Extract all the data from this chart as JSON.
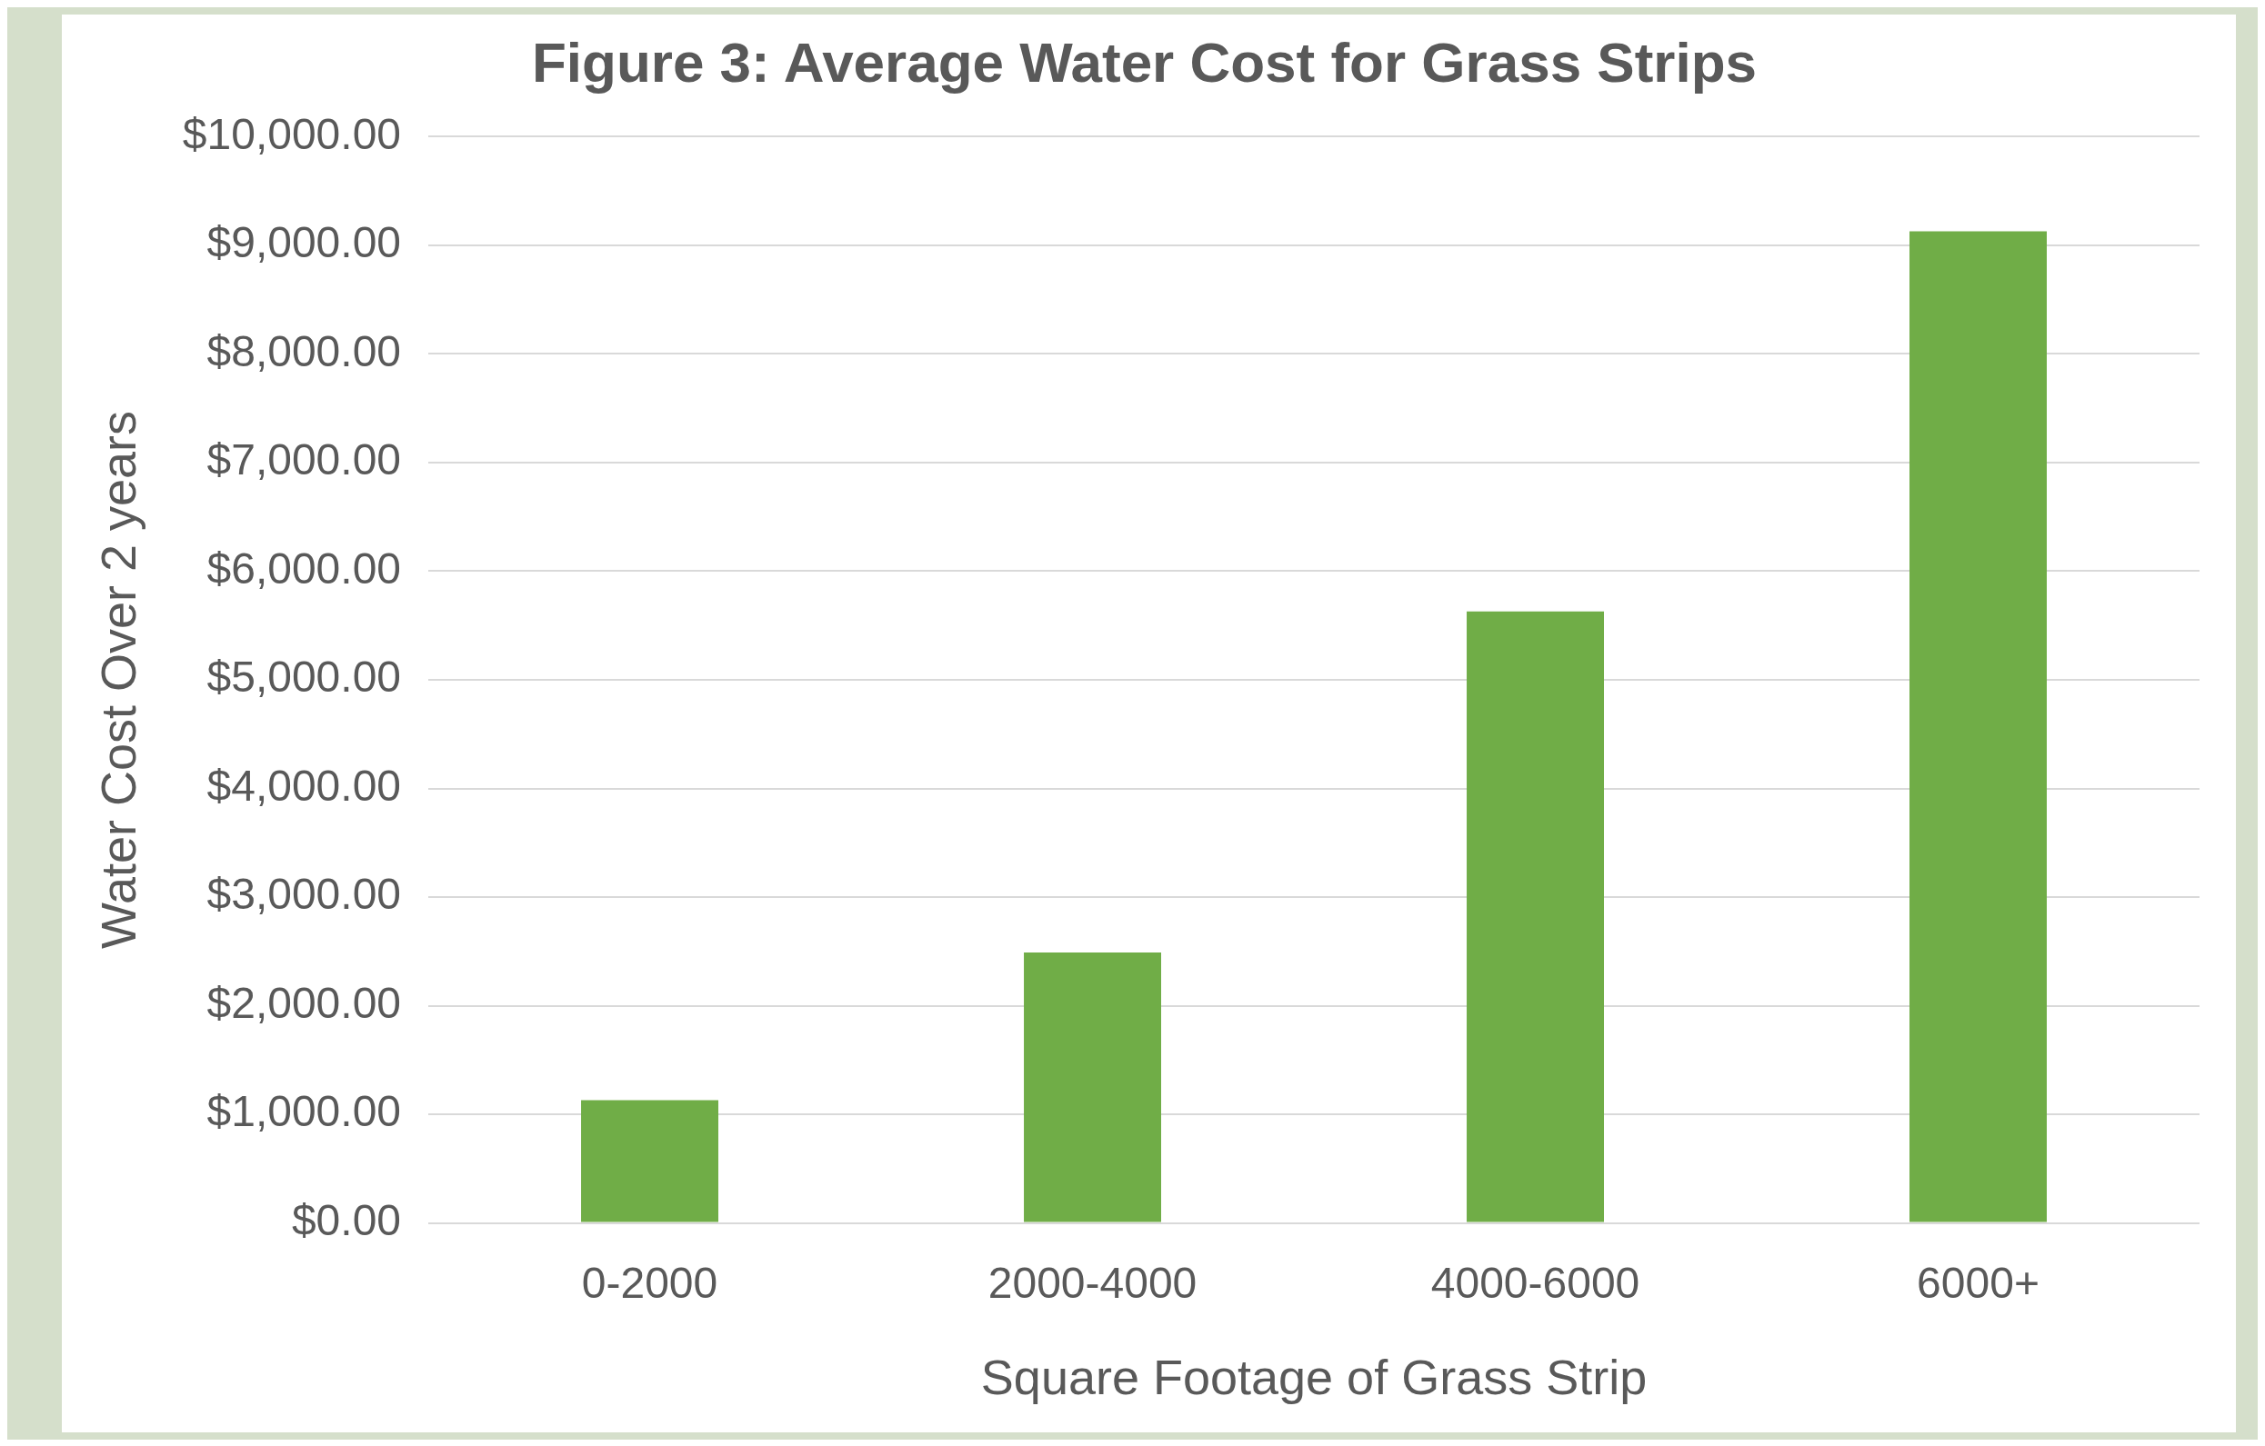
{
  "chart_data": {
    "type": "bar",
    "title": "Figure 3: Average Water Cost for Grass Strips",
    "xlabel": "Square Footage of Grass Strip",
    "ylabel": "Water Cost Over 2 years",
    "categories": [
      "0-2000",
      "2000-4000",
      "4000-6000",
      "6000+"
    ],
    "values": [
      1130,
      2490,
      5630,
      9130
    ],
    "color": "#70ad47",
    "ylim": [
      0,
      10000
    ],
    "yticks": [
      {
        "value": 0,
        "label": "$0.00"
      },
      {
        "value": 1000,
        "label": "$1,000.00"
      },
      {
        "value": 2000,
        "label": "$2,000.00"
      },
      {
        "value": 3000,
        "label": "$3,000.00"
      },
      {
        "value": 4000,
        "label": "$4,000.00"
      },
      {
        "value": 5000,
        "label": "$5,000.00"
      },
      {
        "value": 6000,
        "label": "$6,000.00"
      },
      {
        "value": 7000,
        "label": "$7,000.00"
      },
      {
        "value": 8000,
        "label": "$8,000.00"
      },
      {
        "value": 9000,
        "label": "$9,000.00"
      },
      {
        "value": 10000,
        "label": "$10,000.00"
      }
    ],
    "grid": "y",
    "legend": false
  }
}
